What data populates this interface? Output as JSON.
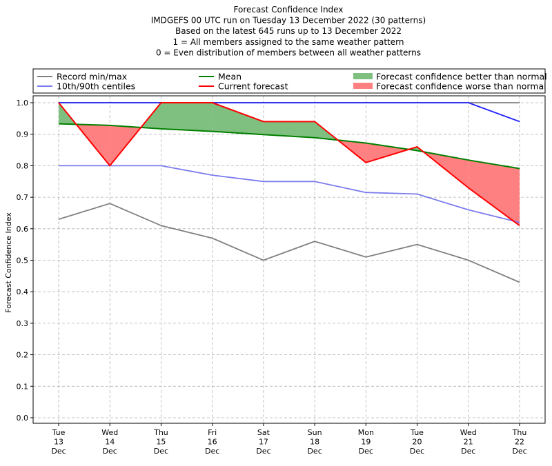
{
  "chart_data": {
    "type": "line",
    "title": [
      "Forecast Confidence Index",
      "IMDGEFS 00 UTC run on Tuesday 13 December 2022 (30 patterns)",
      "Based on the latest 645 runs up to 13 December 2022",
      "1 = All members assigned to the same weather pattern",
      "0 = Even distribution of members between all weather patterns"
    ],
    "ylabel": "Forecast Confidence Index",
    "ylim": [
      0,
      1.0
    ],
    "yticks": [
      "0.0",
      "0.1",
      "0.2",
      "0.3",
      "0.4",
      "0.5",
      "0.6",
      "0.7",
      "0.8",
      "0.9",
      "1.0"
    ],
    "categories": [
      [
        "Tue",
        "13",
        "Dec"
      ],
      [
        "Wed",
        "14",
        "Dec"
      ],
      [
        "Thu",
        "15",
        "Dec"
      ],
      [
        "Fri",
        "16",
        "Dec"
      ],
      [
        "Sat",
        "17",
        "Dec"
      ],
      [
        "Sun",
        "18",
        "Dec"
      ],
      [
        "Mon",
        "19",
        "Dec"
      ],
      [
        "Tue",
        "20",
        "Dec"
      ],
      [
        "Wed",
        "21",
        "Dec"
      ],
      [
        "Thu",
        "22",
        "Dec"
      ]
    ],
    "grid": true,
    "legend_placement": "top",
    "series": [
      {
        "key": "record_min",
        "name": "Record min/max",
        "color": "#808080",
        "values": [
          0.63,
          0.68,
          0.61,
          0.57,
          0.5,
          0.56,
          0.51,
          0.55,
          0.5,
          0.43
        ]
      },
      {
        "key": "record_max",
        "name": "",
        "color": "#808080",
        "values": [
          1.0,
          1.0,
          1.0,
          1.0,
          1.0,
          1.0,
          1.0,
          1.0,
          1.0,
          1.0
        ]
      },
      {
        "key": "p10",
        "name": "10th/90th centiles",
        "color": "#7b7bee",
        "values": [
          0.8,
          0.8,
          0.8,
          0.77,
          0.75,
          0.75,
          0.715,
          0.71,
          0.66,
          0.62
        ]
      },
      {
        "key": "p90",
        "name": "",
        "color": "#2222ff",
        "values": [
          1.0,
          1.0,
          1.0,
          1.0,
          1.0,
          1.0,
          1.0,
          1.0,
          1.0,
          0.94
        ]
      },
      {
        "key": "mean",
        "name": "Mean",
        "color": "#008000",
        "values": [
          0.933,
          0.928,
          0.917,
          0.909,
          0.899,
          0.889,
          0.872,
          0.848,
          0.818,
          0.791
        ]
      },
      {
        "key": "current",
        "name": "Current forecast",
        "color": "#ff0000",
        "values": [
          1.0,
          0.8,
          1.0,
          1.0,
          0.94,
          0.94,
          0.81,
          0.86,
          0.73,
          0.61
        ]
      }
    ],
    "fills": [
      {
        "name": "Forecast confidence better than normal",
        "color": "#7fbf7f"
      },
      {
        "name": "Forecast confidence worse than normal",
        "color": "#ff8080"
      }
    ],
    "legend": [
      {
        "label": "Record min/max",
        "kind": "line",
        "color": "#808080"
      },
      {
        "label": "10th/90th centiles",
        "kind": "line",
        "color": "#7b7bee"
      },
      {
        "label": "Mean",
        "kind": "line",
        "color": "#008000"
      },
      {
        "label": "Current forecast",
        "kind": "line",
        "color": "#ff0000"
      },
      {
        "label": "Forecast confidence better than normal",
        "kind": "patch",
        "color": "#7fbf7f"
      },
      {
        "label": "Forecast confidence worse than normal",
        "kind": "patch",
        "color": "#ff8080"
      }
    ]
  }
}
